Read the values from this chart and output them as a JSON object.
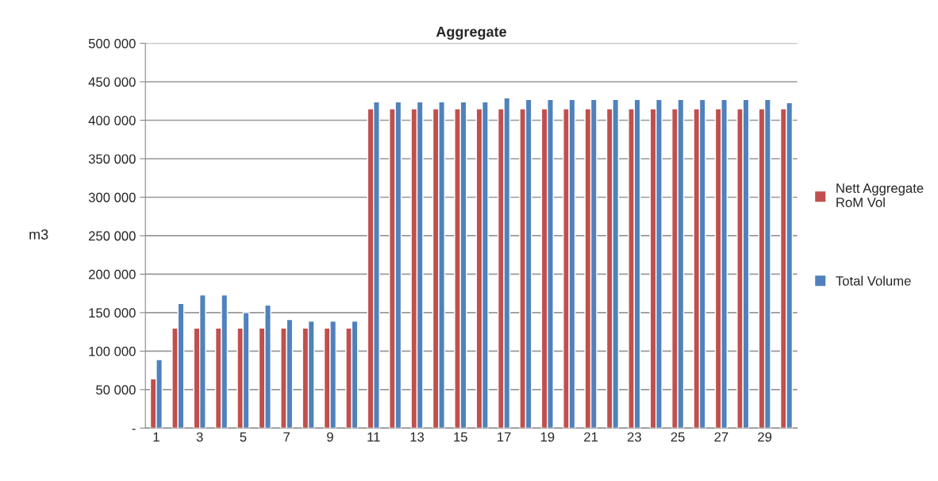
{
  "chart_data": {
    "type": "bar",
    "title": "Aggregate",
    "ylabel": "m3",
    "categories": [
      "1",
      null,
      "3",
      null,
      "5",
      null,
      "7",
      null,
      "9",
      null,
      "11",
      null,
      "13",
      null,
      "15",
      null,
      "17",
      null,
      "19",
      null,
      "21",
      null,
      "23",
      null,
      "25",
      null,
      "27",
      null,
      "29",
      null
    ],
    "series": [
      {
        "name": "Nett Aggregate RoM Vol",
        "color": "#c0504d",
        "values": [
          64000,
          130000,
          130000,
          130000,
          130000,
          130000,
          130000,
          130000,
          130000,
          130000,
          415000,
          415000,
          415000,
          415000,
          415000,
          415000,
          415000,
          415000,
          415000,
          415000,
          415000,
          415000,
          415000,
          415000,
          415000,
          415000,
          415000,
          415000,
          415000,
          415000
        ]
      },
      {
        "name": "Total Volume",
        "color": "#4f81bd",
        "values": [
          89000,
          162000,
          173000,
          173000,
          150000,
          160000,
          141000,
          139000,
          139000,
          139000,
          424000,
          424000,
          424000,
          424000,
          424000,
          424000,
          429000,
          427000,
          427000,
          427000,
          427000,
          427000,
          427000,
          427000,
          427000,
          427000,
          427000,
          427000,
          427000,
          423000
        ]
      }
    ],
    "ylim": [
      0,
      500000
    ],
    "yticks": [
      {
        "value": 0,
        "label": "-"
      },
      {
        "value": 50000,
        "label": "50 000"
      },
      {
        "value": 100000,
        "label": "100 000"
      },
      {
        "value": 150000,
        "label": "150 000"
      },
      {
        "value": 200000,
        "label": "200 000"
      },
      {
        "value": 250000,
        "label": "250 000"
      },
      {
        "value": 300000,
        "label": "300 000"
      },
      {
        "value": 350000,
        "label": "350 000"
      },
      {
        "value": 400000,
        "label": "400 000"
      },
      {
        "value": 450000,
        "label": "450 000"
      },
      {
        "value": 500000,
        "label": "500 000"
      }
    ],
    "grid": "y",
    "legend": "right"
  }
}
